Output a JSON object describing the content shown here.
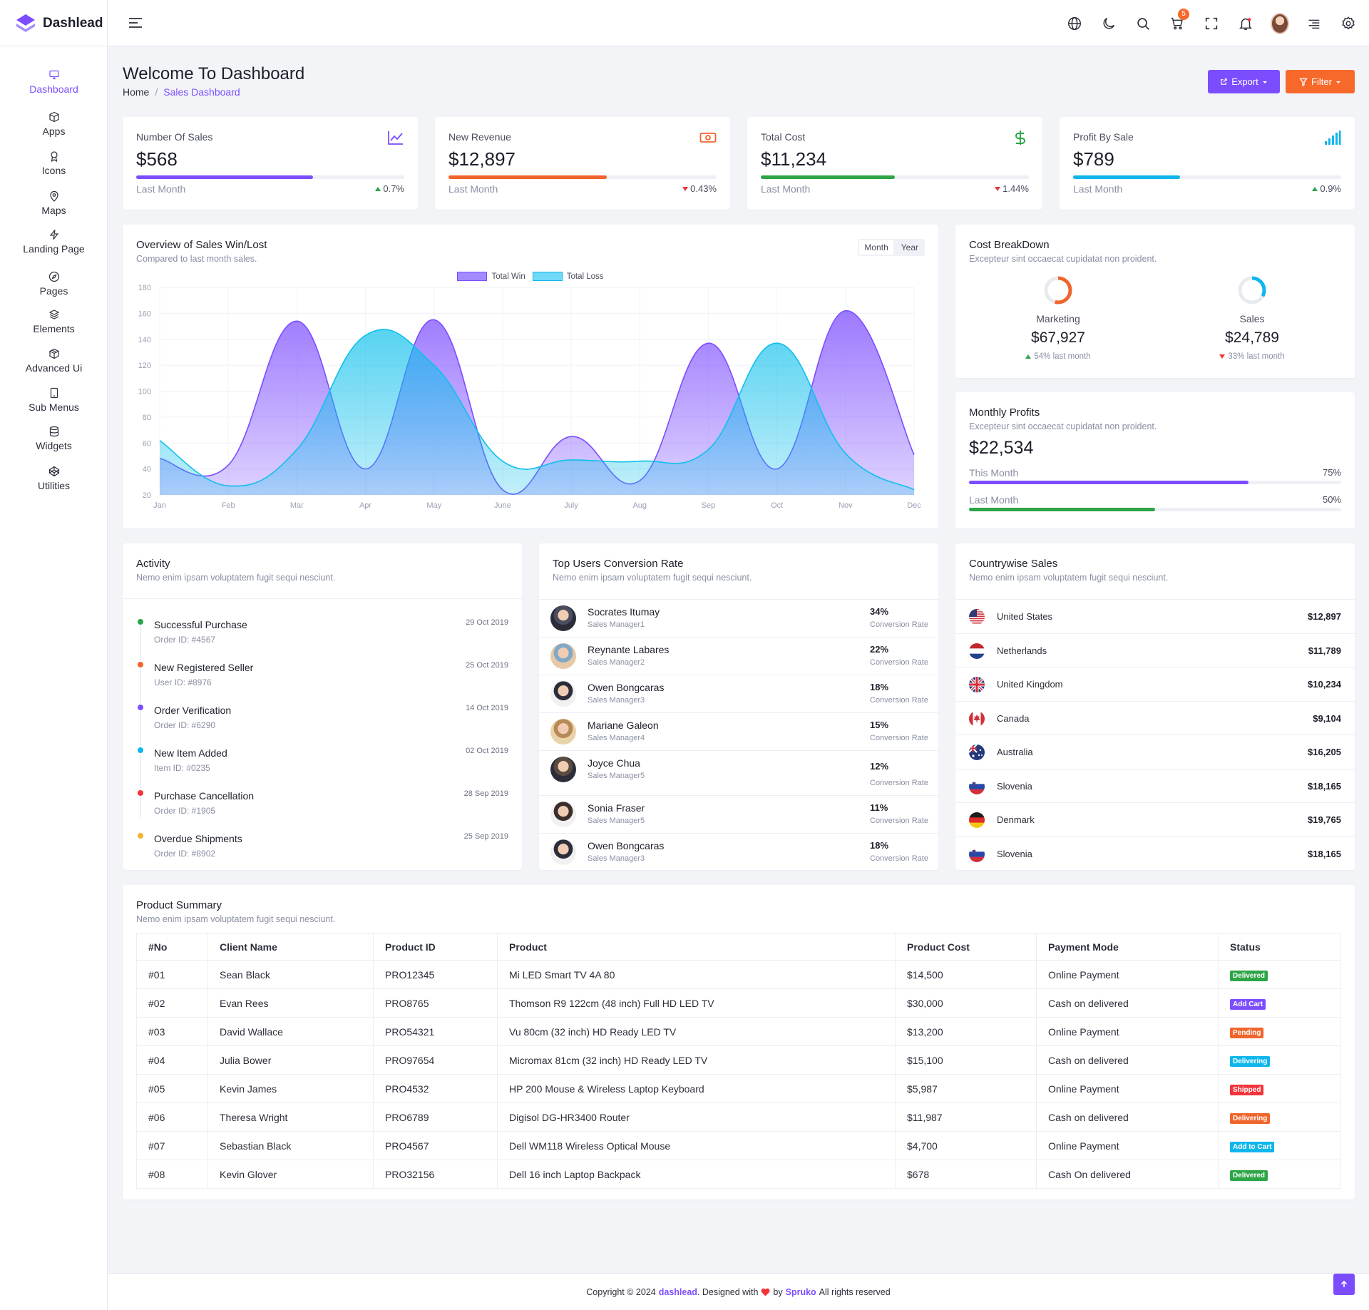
{
  "brand": {
    "name": "Dashlead"
  },
  "header": {
    "cart_count": "5"
  },
  "sidebar": {
    "items": [
      {
        "label": "Dashboard"
      },
      {
        "label": "Apps"
      },
      {
        "label": "Icons"
      },
      {
        "label": "Maps"
      },
      {
        "label": "Landing Page"
      },
      {
        "label": "Pages"
      },
      {
        "label": "Elements"
      },
      {
        "label": "Advanced Ui"
      },
      {
        "label": "Sub Menus"
      },
      {
        "label": "Widgets"
      },
      {
        "label": "Utilities"
      }
    ]
  },
  "page": {
    "title": "Welcome To Dashboard",
    "breadcrumb": {
      "home": "Home",
      "sep": "/",
      "current": "Sales Dashboard"
    },
    "export_label": "Export",
    "filter_label": "Filter"
  },
  "stats": [
    {
      "title": "Number Of Sales",
      "value": "$568",
      "foot": "Last Month",
      "change": "0.7%",
      "direction": "up",
      "progress": 0.66,
      "color": "#7c4dff"
    },
    {
      "title": "New Revenue",
      "value": "$12,897",
      "foot": "Last Month",
      "change": "0.43%",
      "direction": "down",
      "progress": 0.59,
      "color": "#f0652b"
    },
    {
      "title": "Total Cost",
      "value": "$11,234",
      "foot": "Last Month",
      "change": "1.44%",
      "direction": "down",
      "progress": 0.5,
      "color": "#2da547"
    },
    {
      "title": "Profit By Sale",
      "value": "$789",
      "foot": "Last Month",
      "change": "0.9%",
      "direction": "up",
      "progress": 0.4,
      "color": "#0fb6ec"
    }
  ],
  "overview": {
    "title": "Overview of Sales Win/Lost",
    "subtitle": "Compared to last month sales.",
    "toggle": [
      "Month",
      "Year"
    ]
  },
  "chart_data": {
    "type": "area",
    "categories": [
      "Jan",
      "Feb",
      "Mar",
      "Apr",
      "May",
      "June",
      "July",
      "Aug",
      "Sep",
      "Oct",
      "Nov",
      "Dec"
    ],
    "series": [
      {
        "name": "Total Win",
        "values": [
          48,
          43,
          154,
          40,
          155,
          24,
          65,
          31,
          137,
          40,
          162,
          51
        ],
        "color": "#7c4dff"
      },
      {
        "name": "Total Loss",
        "values": [
          62,
          27,
          55,
          143,
          120,
          46,
          47,
          46,
          55,
          137,
          52,
          24
        ],
        "color": "#0fc0ec"
      }
    ],
    "ylim": [
      20,
      180
    ],
    "yticks": [
      "20",
      "40",
      "60",
      "80",
      "100",
      "120",
      "140",
      "160",
      "180"
    ],
    "grid": true,
    "legend": "top-center"
  },
  "cost_breakdown": {
    "title": "Cost BreakDown",
    "subtitle": "Excepteur sint occaecat cupidatat non proident.",
    "items": [
      {
        "label": "Marketing",
        "value": "$67,927",
        "change": "54% last month",
        "direction": "up",
        "fraction": 0.54,
        "color": "#f0652b"
      },
      {
        "label": "Sales",
        "value": "$24,789",
        "change": "33% last month",
        "direction": "down",
        "fraction": 0.33,
        "color": "#0fb6ec"
      }
    ]
  },
  "monthly_profits": {
    "title": "Monthly Profits",
    "subtitle": "Excepteur sint occaecat cupidatat non proident.",
    "value": "$22,534",
    "rows": [
      {
        "label": "This Month",
        "pct": "75%",
        "progress": 0.75,
        "color": "#7c4dff"
      },
      {
        "label": "Last Month",
        "pct": "50%",
        "progress": 0.5,
        "color": "#2da547"
      }
    ]
  },
  "activity": {
    "title": "Activity",
    "subtitle": "Nemo enim ipsam voluptatem fugit sequi nesciunt.",
    "items": [
      {
        "title": "Successful Purchase",
        "sub": "Order ID: #4567",
        "date": "29 Oct 2019",
        "color": "#2da547"
      },
      {
        "title": "New Registered Seller",
        "sub": "User ID: #8976",
        "date": "25 Oct 2019",
        "color": "#f0652b"
      },
      {
        "title": "Order Verification",
        "sub": "Order ID: #6290",
        "date": "14 Oct 2019",
        "color": "#7c4dff"
      },
      {
        "title": "New Item Added",
        "sub": "Item ID: #0235",
        "date": "02 Oct 2019",
        "color": "#0fb6ec"
      },
      {
        "title": "Purchase Cancellation",
        "sub": "Order ID: #1905",
        "date": "28 Sep 2019",
        "color": "#f3343b"
      },
      {
        "title": "Overdue Shipments",
        "sub": "Order ID: #8902",
        "date": "25 Sep 2019",
        "color": "#f5b12d"
      }
    ]
  },
  "conversion": {
    "title": "Top Users Conversion Rate",
    "subtitle": "Nemo enim ipsam voluptatem fugit sequi nesciunt.",
    "rate_label": "Conversion Rate",
    "users": [
      {
        "name": "Socrates Itumay",
        "role": "Sales Manager1",
        "pct": "34%"
      },
      {
        "name": "Reynante Labares",
        "role": "Sales Manager2",
        "pct": "22%"
      },
      {
        "name": "Owen Bongcaras",
        "role": "Sales Manager3",
        "pct": "18%"
      },
      {
        "name": "Mariane Galeon",
        "role": "Sales Manager4",
        "pct": "15%"
      },
      {
        "name": "Joyce Chua",
        "role": "Sales Manager5",
        "pct": "12%"
      },
      {
        "name": "Sonia Fraser",
        "role": "Sales Manager5",
        "pct": "11%"
      },
      {
        "name": "Owen Bongcaras",
        "role": "Sales Manager3",
        "pct": "18%"
      }
    ]
  },
  "countrywise": {
    "title": "Countrywise Sales",
    "subtitle": "Nemo enim ipsam voluptatem fugit sequi nesciunt.",
    "rows": [
      {
        "country": "United States",
        "value": "$12,897",
        "flag": "us-flag"
      },
      {
        "country": "Netherlands",
        "value": "$11,789",
        "flag": "nl-flag"
      },
      {
        "country": "United Kingdom",
        "value": "$10,234",
        "flag": "uk-flag"
      },
      {
        "country": "Canada",
        "value": "$9,104",
        "flag": "ca-flag"
      },
      {
        "country": "Australia",
        "value": "$16,205",
        "flag": "au-flag"
      },
      {
        "country": "Slovenia",
        "value": "$18,165",
        "flag": "si-flag"
      },
      {
        "country": "Denmark",
        "value": "$19,765",
        "flag": "de-flag"
      },
      {
        "country": "Slovenia",
        "value": "$18,165",
        "flag": "si-flag"
      }
    ]
  },
  "product_summary": {
    "title": "Product Summary",
    "subtitle": "Nemo enim ipsam voluptatem fugit sequi nesciunt.",
    "columns": [
      "#No",
      "Client Name",
      "Product ID",
      "Product",
      "Product Cost",
      "Payment Mode",
      "Status"
    ],
    "rows": [
      {
        "no": "#01",
        "client": "Sean Black",
        "pid": "PRO12345",
        "product": "Mi LED Smart TV 4A 80",
        "cost": "$14,500",
        "payment": "Online Payment",
        "status": "Delivered",
        "status_color": "#2da547"
      },
      {
        "no": "#02",
        "client": "Evan Rees",
        "pid": "PRO8765",
        "product": "Thomson R9 122cm (48 inch) Full HD LED TV",
        "cost": "$30,000",
        "payment": "Cash on delivered",
        "status": "Add Cart",
        "status_color": "#7c4dff"
      },
      {
        "no": "#03",
        "client": "David Wallace",
        "pid": "PRO54321",
        "product": "Vu 80cm (32 inch) HD Ready LED TV",
        "cost": "$13,200",
        "payment": "Online Payment",
        "status": "Pending",
        "status_color": "#f0652b"
      },
      {
        "no": "#04",
        "client": "Julia Bower",
        "pid": "PRO97654",
        "product": "Micromax 81cm (32 inch) HD Ready LED TV",
        "cost": "$15,100",
        "payment": "Cash on delivered",
        "status": "Delivering",
        "status_color": "#0fb6ec"
      },
      {
        "no": "#05",
        "client": "Kevin James",
        "pid": "PRO4532",
        "product": "HP 200 Mouse & Wireless Laptop Keyboard",
        "cost": "$5,987",
        "payment": "Online Payment",
        "status": "Shipped",
        "status_color": "#f3343b"
      },
      {
        "no": "#06",
        "client": "Theresa Wright",
        "pid": "PRO6789",
        "product": "Digisol DG-HR3400 Router",
        "cost": "$11,987",
        "payment": "Cash on delivered",
        "status": "Delivering",
        "status_color": "#f0652b"
      },
      {
        "no": "#07",
        "client": "Sebastian Black",
        "pid": "PRO4567",
        "product": "Dell WM118 Wireless Optical Mouse",
        "cost": "$4,700",
        "payment": "Online Payment",
        "status": "Add to Cart",
        "status_color": "#0fb6ec"
      },
      {
        "no": "#08",
        "client": "Kevin Glover",
        "pid": "PRO32156",
        "product": "Dell 16 inch Laptop Backpack",
        "cost": "$678",
        "payment": "Cash On delivered",
        "status": "Delivered",
        "status_color": "#2da547"
      }
    ]
  },
  "footer": {
    "prefix": "Copyright © 2024",
    "brand": "dashlead",
    "designed": ". Designed with",
    "by": "by",
    "author": "Spruko",
    "suffix": "All rights reserved"
  }
}
